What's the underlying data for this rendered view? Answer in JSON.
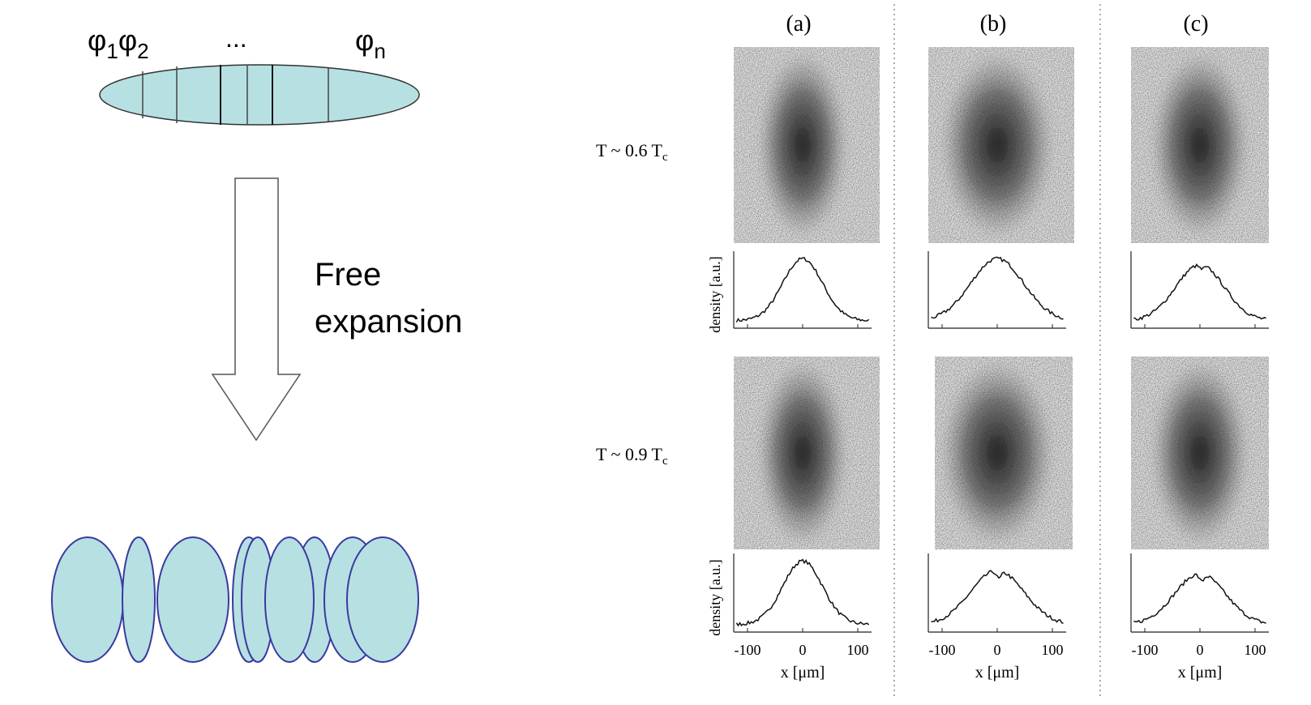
{
  "schematic": {
    "phases": [
      {
        "symbol": "φ",
        "index": "1"
      },
      {
        "symbol": "φ",
        "index": "2"
      },
      {
        "symbol": "φ",
        "index": "n"
      }
    ],
    "ellipsis": "...",
    "arrow_label": [
      "Free",
      "expansion"
    ]
  },
  "panels": {
    "columns": [
      "(a)",
      "(b)",
      "(c)"
    ],
    "rows": [
      {
        "text": "T ~ 0.6 T",
        "sub": "c"
      },
      {
        "text": "T ~ 0.9 T",
        "sub": "c"
      }
    ],
    "ylabel": "density [a.u.]",
    "xlabel": "x [μm]",
    "xticks": [
      -100,
      0,
      100
    ],
    "xlim": [
      -125,
      125
    ]
  }
}
